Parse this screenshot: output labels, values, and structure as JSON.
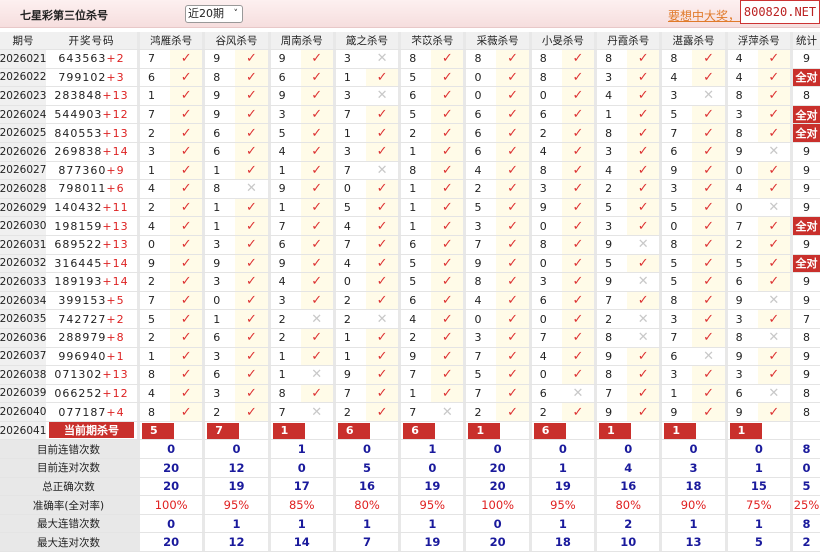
{
  "header": {
    "title": "七星彩第三位杀号",
    "period_select": "近20期",
    "promo_link": "要想中大奖，",
    "watermark": "800820.NET"
  },
  "colors": {
    "accent": "#c9302c",
    "check": "#d33333",
    "cross": "#c8c8c8",
    "stat": "#1a1a9c",
    "pct": "#e02020"
  },
  "columns": [
    "期号",
    "开奖号码",
    "鸿雁杀号",
    "谷风杀号",
    "周南杀号",
    "箴之杀号",
    "芣苡杀号",
    "采薇杀号",
    "小旻杀号",
    "丹霞杀号",
    "湛露杀号",
    "浮萍杀号",
    "统计"
  ],
  "rows": [
    {
      "issue": "2026021",
      "nums": "643563",
      "sum": "+2",
      "kills": [
        [
          7,
          1
        ],
        [
          9,
          1
        ],
        [
          9,
          1
        ],
        [
          3,
          0
        ],
        [
          8,
          1
        ],
        [
          8,
          1
        ],
        [
          8,
          1
        ],
        [
          8,
          1
        ],
        [
          8,
          1
        ],
        [
          4,
          1
        ]
      ],
      "stat": "9"
    },
    {
      "issue": "2026022",
      "nums": "799102",
      "sum": "+3",
      "kills": [
        [
          6,
          1
        ],
        [
          8,
          1
        ],
        [
          6,
          1
        ],
        [
          1,
          1
        ],
        [
          5,
          1
        ],
        [
          0,
          1
        ],
        [
          8,
          1
        ],
        [
          3,
          1
        ],
        [
          4,
          1
        ],
        [
          4,
          1
        ]
      ],
      "stat": "全对"
    },
    {
      "issue": "2026023",
      "nums": "283848",
      "sum": "+13",
      "kills": [
        [
          1,
          1
        ],
        [
          9,
          1
        ],
        [
          9,
          1
        ],
        [
          3,
          0
        ],
        [
          6,
          1
        ],
        [
          0,
          1
        ],
        [
          0,
          1
        ],
        [
          4,
          1
        ],
        [
          3,
          0
        ],
        [
          8,
          1
        ]
      ],
      "stat": "8"
    },
    {
      "issue": "2026024",
      "nums": "544903",
      "sum": "+12",
      "kills": [
        [
          7,
          1
        ],
        [
          9,
          1
        ],
        [
          3,
          1
        ],
        [
          7,
          1
        ],
        [
          5,
          1
        ],
        [
          6,
          1
        ],
        [
          6,
          1
        ],
        [
          1,
          1
        ],
        [
          5,
          1
        ],
        [
          3,
          1
        ]
      ],
      "stat": "全对"
    },
    {
      "issue": "2026025",
      "nums": "840553",
      "sum": "+13",
      "kills": [
        [
          2,
          1
        ],
        [
          6,
          1
        ],
        [
          5,
          1
        ],
        [
          1,
          1
        ],
        [
          2,
          1
        ],
        [
          6,
          1
        ],
        [
          2,
          1
        ],
        [
          8,
          1
        ],
        [
          7,
          1
        ],
        [
          8,
          1
        ]
      ],
      "stat": "全对"
    },
    {
      "issue": "2026026",
      "nums": "269838",
      "sum": "+14",
      "kills": [
        [
          3,
          1
        ],
        [
          6,
          1
        ],
        [
          4,
          1
        ],
        [
          3,
          1
        ],
        [
          1,
          1
        ],
        [
          6,
          1
        ],
        [
          4,
          1
        ],
        [
          3,
          1
        ],
        [
          6,
          1
        ],
        [
          9,
          0
        ]
      ],
      "stat": "9"
    },
    {
      "issue": "2026027",
      "nums": "877360",
      "sum": "+9",
      "kills": [
        [
          1,
          1
        ],
        [
          1,
          1
        ],
        [
          1,
          1
        ],
        [
          7,
          0
        ],
        [
          8,
          1
        ],
        [
          4,
          1
        ],
        [
          8,
          1
        ],
        [
          4,
          1
        ],
        [
          9,
          1
        ],
        [
          0,
          1
        ]
      ],
      "stat": "9"
    },
    {
      "issue": "2026028",
      "nums": "798011",
      "sum": "+6",
      "kills": [
        [
          4,
          1
        ],
        [
          8,
          0
        ],
        [
          9,
          1
        ],
        [
          0,
          1
        ],
        [
          1,
          1
        ],
        [
          2,
          1
        ],
        [
          3,
          1
        ],
        [
          2,
          1
        ],
        [
          3,
          1
        ],
        [
          4,
          1
        ]
      ],
      "stat": "9"
    },
    {
      "issue": "2026029",
      "nums": "140432",
      "sum": "+11",
      "kills": [
        [
          2,
          1
        ],
        [
          1,
          1
        ],
        [
          1,
          1
        ],
        [
          5,
          1
        ],
        [
          1,
          1
        ],
        [
          5,
          1
        ],
        [
          9,
          1
        ],
        [
          5,
          1
        ],
        [
          5,
          1
        ],
        [
          0,
          0
        ]
      ],
      "stat": "9"
    },
    {
      "issue": "2026030",
      "nums": "198159",
      "sum": "+13",
      "kills": [
        [
          4,
          1
        ],
        [
          1,
          1
        ],
        [
          7,
          1
        ],
        [
          4,
          1
        ],
        [
          1,
          1
        ],
        [
          3,
          1
        ],
        [
          0,
          1
        ],
        [
          3,
          1
        ],
        [
          0,
          1
        ],
        [
          7,
          1
        ]
      ],
      "stat": "全对"
    },
    {
      "issue": "2026031",
      "nums": "689522",
      "sum": "+13",
      "kills": [
        [
          0,
          1
        ],
        [
          3,
          1
        ],
        [
          6,
          1
        ],
        [
          7,
          1
        ],
        [
          6,
          1
        ],
        [
          7,
          1
        ],
        [
          8,
          1
        ],
        [
          9,
          0
        ],
        [
          8,
          1
        ],
        [
          2,
          1
        ]
      ],
      "stat": "9"
    },
    {
      "issue": "2026032",
      "nums": "316445",
      "sum": "+14",
      "kills": [
        [
          9,
          1
        ],
        [
          9,
          1
        ],
        [
          9,
          1
        ],
        [
          4,
          1
        ],
        [
          5,
          1
        ],
        [
          9,
          1
        ],
        [
          0,
          1
        ],
        [
          5,
          1
        ],
        [
          5,
          1
        ],
        [
          5,
          1
        ]
      ],
      "stat": "全对"
    },
    {
      "issue": "2026033",
      "nums": "189193",
      "sum": "+14",
      "kills": [
        [
          2,
          1
        ],
        [
          3,
          1
        ],
        [
          4,
          1
        ],
        [
          0,
          1
        ],
        [
          5,
          1
        ],
        [
          8,
          1
        ],
        [
          3,
          1
        ],
        [
          9,
          0
        ],
        [
          5,
          1
        ],
        [
          6,
          1
        ]
      ],
      "stat": "9"
    },
    {
      "issue": "2026034",
      "nums": "399153",
      "sum": "+5",
      "kills": [
        [
          7,
          1
        ],
        [
          0,
          1
        ],
        [
          3,
          1
        ],
        [
          2,
          1
        ],
        [
          6,
          1
        ],
        [
          4,
          1
        ],
        [
          6,
          1
        ],
        [
          7,
          1
        ],
        [
          8,
          1
        ],
        [
          9,
          0
        ]
      ],
      "stat": "9"
    },
    {
      "issue": "2026035",
      "nums": "742727",
      "sum": "+2",
      "kills": [
        [
          5,
          1
        ],
        [
          1,
          1
        ],
        [
          2,
          0
        ],
        [
          2,
          0
        ],
        [
          4,
          1
        ],
        [
          0,
          1
        ],
        [
          0,
          1
        ],
        [
          2,
          0
        ],
        [
          3,
          1
        ],
        [
          3,
          1
        ]
      ],
      "stat": "7"
    },
    {
      "issue": "2026036",
      "nums": "288979",
      "sum": "+8",
      "kills": [
        [
          2,
          1
        ],
        [
          6,
          1
        ],
        [
          2,
          1
        ],
        [
          1,
          1
        ],
        [
          2,
          1
        ],
        [
          3,
          1
        ],
        [
          7,
          1
        ],
        [
          8,
          0
        ],
        [
          7,
          1
        ],
        [
          8,
          0
        ]
      ],
      "stat": "8"
    },
    {
      "issue": "2026037",
      "nums": "996940",
      "sum": "+1",
      "kills": [
        [
          1,
          1
        ],
        [
          3,
          1
        ],
        [
          1,
          1
        ],
        [
          1,
          1
        ],
        [
          9,
          1
        ],
        [
          7,
          1
        ],
        [
          4,
          1
        ],
        [
          9,
          1
        ],
        [
          6,
          0
        ],
        [
          9,
          1
        ]
      ],
      "stat": "9"
    },
    {
      "issue": "2026038",
      "nums": "071302",
      "sum": "+13",
      "kills": [
        [
          8,
          1
        ],
        [
          6,
          1
        ],
        [
          1,
          0
        ],
        [
          9,
          1
        ],
        [
          7,
          1
        ],
        [
          5,
          1
        ],
        [
          0,
          1
        ],
        [
          8,
          1
        ],
        [
          3,
          1
        ],
        [
          3,
          1
        ]
      ],
      "stat": "9"
    },
    {
      "issue": "2026039",
      "nums": "066252",
      "sum": "+12",
      "kills": [
        [
          4,
          1
        ],
        [
          3,
          1
        ],
        [
          8,
          1
        ],
        [
          7,
          1
        ],
        [
          1,
          1
        ],
        [
          7,
          1
        ],
        [
          6,
          0
        ],
        [
          7,
          1
        ],
        [
          1,
          1
        ],
        [
          6,
          0
        ]
      ],
      "stat": "8"
    },
    {
      "issue": "2026040",
      "nums": "077187",
      "sum": "+4",
      "kills": [
        [
          8,
          1
        ],
        [
          2,
          1
        ],
        [
          7,
          0
        ],
        [
          2,
          1
        ],
        [
          7,
          0
        ],
        [
          2,
          1
        ],
        [
          2,
          1
        ],
        [
          9,
          1
        ],
        [
          9,
          1
        ],
        [
          9,
          1
        ]
      ],
      "stat": "8"
    }
  ],
  "current": {
    "issue": "2026041",
    "label": "当前期杀号",
    "kills": [
      "5",
      "7",
      "1",
      "6",
      "6",
      "1",
      "6",
      "1",
      "1",
      "1"
    ]
  },
  "stats": [
    {
      "label": "目前连错次数",
      "values": [
        "0",
        "0",
        "1",
        "0",
        "1",
        "0",
        "0",
        "0",
        "0",
        "0"
      ],
      "total": "8"
    },
    {
      "label": "目前连对次数",
      "values": [
        "20",
        "12",
        "0",
        "5",
        "0",
        "20",
        "1",
        "4",
        "3",
        "1"
      ],
      "total": "0"
    },
    {
      "label": "总正确次数",
      "values": [
        "20",
        "19",
        "17",
        "16",
        "19",
        "20",
        "19",
        "16",
        "18",
        "15"
      ],
      "total": "5"
    },
    {
      "label": "准确率(全对率)",
      "values": [
        "100%",
        "95%",
        "85%",
        "80%",
        "95%",
        "100%",
        "95%",
        "80%",
        "90%",
        "75%"
      ],
      "total": "25%"
    },
    {
      "label": "最大连错次数",
      "values": [
        "0",
        "1",
        "1",
        "1",
        "1",
        "0",
        "1",
        "2",
        "1",
        "1"
      ],
      "total": "8"
    },
    {
      "label": "最大连对次数",
      "values": [
        "20",
        "12",
        "14",
        "7",
        "19",
        "20",
        "18",
        "10",
        "13",
        "5"
      ],
      "total": "2"
    }
  ]
}
